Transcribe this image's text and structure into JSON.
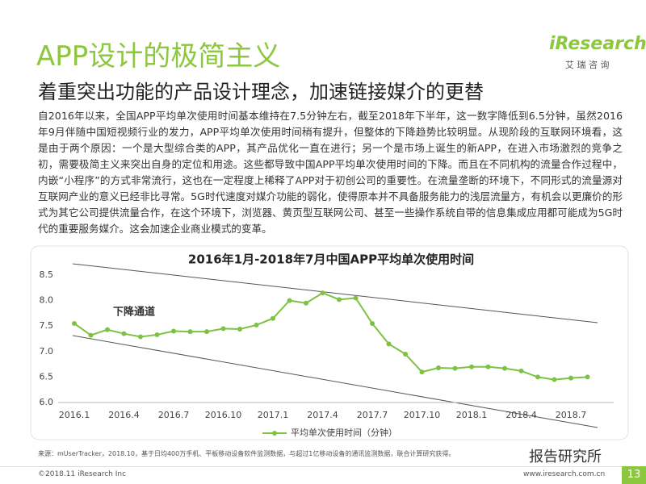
{
  "header": {
    "title": "APP设计的极简主义",
    "subtitle": "着重突出功能的产品设计理念，加速链接媒介的更替",
    "logo": "iResearch",
    "logo_sub": "艾 瑞 咨 询"
  },
  "body": "自2016年以来，全国APP平均单次使用时间基本维持在7.5分钟左右，截至2018年下半年，这一数字降低到6.5分钟，虽然2016年9月伴随中国短视频行业的发力，APP平均单次使用时间稍有提升，但整体的下降趋势比较明显。从现阶段的互联网环境看，这是由于两个原因：一个是大型综合类的APP，其产品优化一直在进行；另一个是市场上诞生的新APP，在进入市场激烈的竞争之初，需要极简主义来突出自身的定位和用途。这些都导致中国APP平均单次使用时间的下降。而且在不同机构的流量合作过程中，内嵌“小程序”的方式非常流行，这也在一定程度上稀释了APP对于初创公司的重要性。在流量垄断的环境下，不同形式的流量源对互联网产业的意义已经非比寻常。5G时代速度对媒介功能的弱化，使得原本并不具备服务能力的浅层流量方，有机会以更廉价的形式为其它公司提供流量合作，在这个环境下，浏览器、黄页型互联网公司、甚至一些操作系统自带的信息集成应用都可能成为5G时代的重要服务媒介。这会加速企业商业模式的变革。",
  "chart_data": {
    "type": "line",
    "title": "2016年1月-2018年7月中国APP平均单次使用时间",
    "annotation": "下降通道",
    "categories": [
      "2016.1",
      null,
      null,
      "2016.4",
      null,
      null,
      "2016.7",
      null,
      null,
      "2016.10",
      null,
      null,
      "2017.1",
      null,
      null,
      "2017.4",
      null,
      null,
      "2017.7",
      null,
      null,
      "2017.10",
      null,
      null,
      "2018.1",
      null,
      null,
      "2018.4",
      null,
      null,
      "2018.7",
      null
    ],
    "series": [
      {
        "name": "平均单次使用时间（分钟）",
        "color": "#7dc242",
        "values": [
          7.55,
          7.32,
          7.43,
          7.35,
          7.29,
          7.33,
          7.4,
          7.39,
          7.39,
          7.45,
          7.44,
          7.52,
          7.65,
          8.0,
          7.95,
          8.15,
          8.02,
          8.05,
          7.55,
          7.15,
          6.95,
          6.6,
          6.68,
          6.67,
          6.7,
          6.7,
          6.67,
          6.62,
          6.5,
          6.45,
          6.48,
          6.5
        ]
      }
    ],
    "ylim": [
      6.0,
      8.5
    ],
    "yticks": [
      {
        "value": 6,
        "label": "6.0"
      },
      6.5,
      {
        "value": 7,
        "label": "7.0"
      },
      7.5,
      {
        "value": 8,
        "label": "8.0"
      },
      8.5
    ],
    "grid": false
  },
  "footer": {
    "source": "来源：mUserTracker，2018.10，基于日均400万手机、平板移动设备软件监测数据，与超过1亿移动设备的通讯监测数据，联合计算研究获得。",
    "copyright": "©2018.11 iResearch Inc",
    "url": "www.iresearch.com.cn",
    "page": "13",
    "watermark": "报告研究所"
  }
}
